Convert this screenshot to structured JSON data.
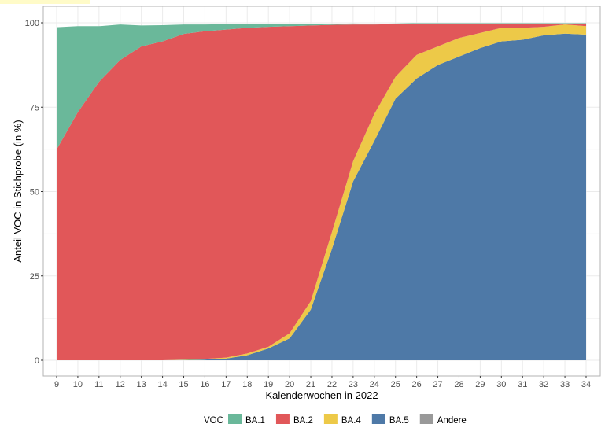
{
  "chart_data": {
    "type": "area",
    "stacked": true,
    "xlabel": "Kalenderwochen in 2022",
    "ylabel": "Anteil VOC in Stichprobe (in %)",
    "x": [
      9,
      10,
      11,
      12,
      13,
      14,
      15,
      16,
      17,
      18,
      19,
      20,
      21,
      22,
      23,
      24,
      25,
      26,
      27,
      28,
      29,
      30,
      31,
      32,
      33,
      34
    ],
    "xlim": [
      9,
      34
    ],
    "ylim": [
      0,
      100
    ],
    "yticks": [
      0,
      25,
      50,
      75,
      100
    ],
    "grid": true,
    "legend": {
      "title": "VOC",
      "position": "bottom"
    },
    "series": [
      {
        "name": "BA.5",
        "color": "#4e79a7",
        "values": [
          0,
          0,
          0,
          0,
          0,
          0,
          0.1,
          0.2,
          0.5,
          1.5,
          3.5,
          6.5,
          15,
          33,
          53,
          65,
          77.5,
          83.5,
          87.5,
          90,
          92.5,
          94.5,
          95,
          96.3,
          96.8,
          96.5
        ]
      },
      {
        "name": "BA.4",
        "color": "#edc948",
        "values": [
          0,
          0,
          0,
          0,
          0,
          0,
          0.1,
          0.2,
          0.3,
          0.5,
          0.5,
          1.5,
          2.5,
          5,
          6,
          8,
          6.5,
          7,
          5.5,
          5.5,
          4.5,
          4,
          3.5,
          2.5,
          2.7,
          2.5
        ]
      },
      {
        "name": "BA.2",
        "color": "#e15759",
        "values": [
          62.5,
          73.5,
          82.5,
          89,
          93,
          94.5,
          96.5,
          97.1,
          97.2,
          96.5,
          94.8,
          91,
          81.7,
          61.4,
          40.5,
          26.5,
          15.6,
          9.3,
          6.8,
          4.3,
          2.8,
          1.3,
          1.3,
          1,
          0.3,
          0.8
        ]
      },
      {
        "name": "BA.1",
        "color": "#6ab89a",
        "values": [
          36.2,
          25.5,
          16.5,
          10.5,
          6.2,
          4.8,
          2.8,
          2,
          1.6,
          1.2,
          0.9,
          0.7,
          0.5,
          0.3,
          0.3,
          0.2,
          0.2,
          0.1,
          0.1,
          0.1,
          0.1,
          0.1,
          0.1,
          0.1,
          0.1,
          0.1
        ]
      },
      {
        "name": "Andere",
        "color": "#999999",
        "values": [
          0,
          0,
          0,
          0,
          0,
          0,
          0,
          0,
          0,
          0,
          0,
          0,
          0,
          0,
          0,
          0,
          0,
          0,
          0,
          0,
          0,
          0,
          0,
          0,
          0,
          0
        ]
      }
    ],
    "legend_order": [
      "BA.1",
      "BA.2",
      "BA.4",
      "BA.5",
      "Andere"
    ]
  }
}
